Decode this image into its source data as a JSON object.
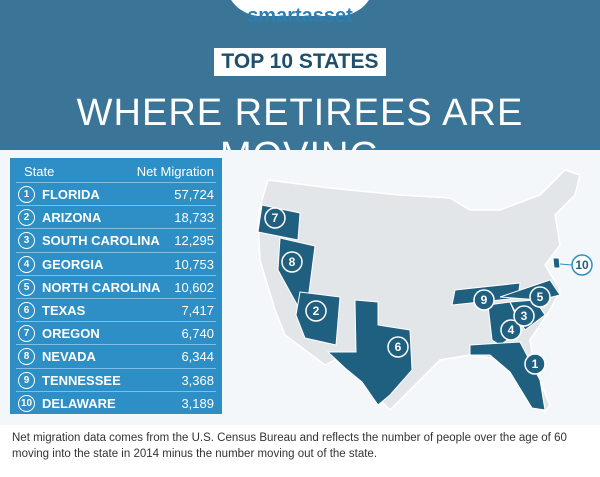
{
  "header": {
    "brand": "smartasset",
    "badge": "TOP 10 STATES",
    "title": "WHERE RETIREES ARE MOVING"
  },
  "table": {
    "columns": [
      "State",
      "Net Migration"
    ],
    "rows": [
      {
        "rank": "1",
        "state": "FLORIDA",
        "value": "57,724"
      },
      {
        "rank": "2",
        "state": "ARIZONA",
        "value": "18,733"
      },
      {
        "rank": "3",
        "state": "SOUTH CAROLINA",
        "value": "12,295"
      },
      {
        "rank": "4",
        "state": "GEORGIA",
        "value": "10,753"
      },
      {
        "rank": "5",
        "state": "NORTH CAROLINA",
        "value": "10,602"
      },
      {
        "rank": "6",
        "state": "TEXAS",
        "value": "7,417"
      },
      {
        "rank": "7",
        "state": "OREGON",
        "value": "6,740"
      },
      {
        "rank": "8",
        "state": "NEVADA",
        "value": "6,344"
      },
      {
        "rank": "9",
        "state": "TENNESSEE",
        "value": "3,368"
      },
      {
        "rank": "10",
        "state": "DELAWARE",
        "value": "3,189"
      }
    ]
  },
  "map": {
    "markers": [
      "7",
      "8",
      "2",
      "6",
      "9",
      "4",
      "3",
      "5",
      "1",
      "10"
    ]
  },
  "footnote": "Net migration data comes from the U.S. Census Bureau and reflects the number of people over the age of 60 moving into the state in 2014 minus the number moving out of the state."
}
